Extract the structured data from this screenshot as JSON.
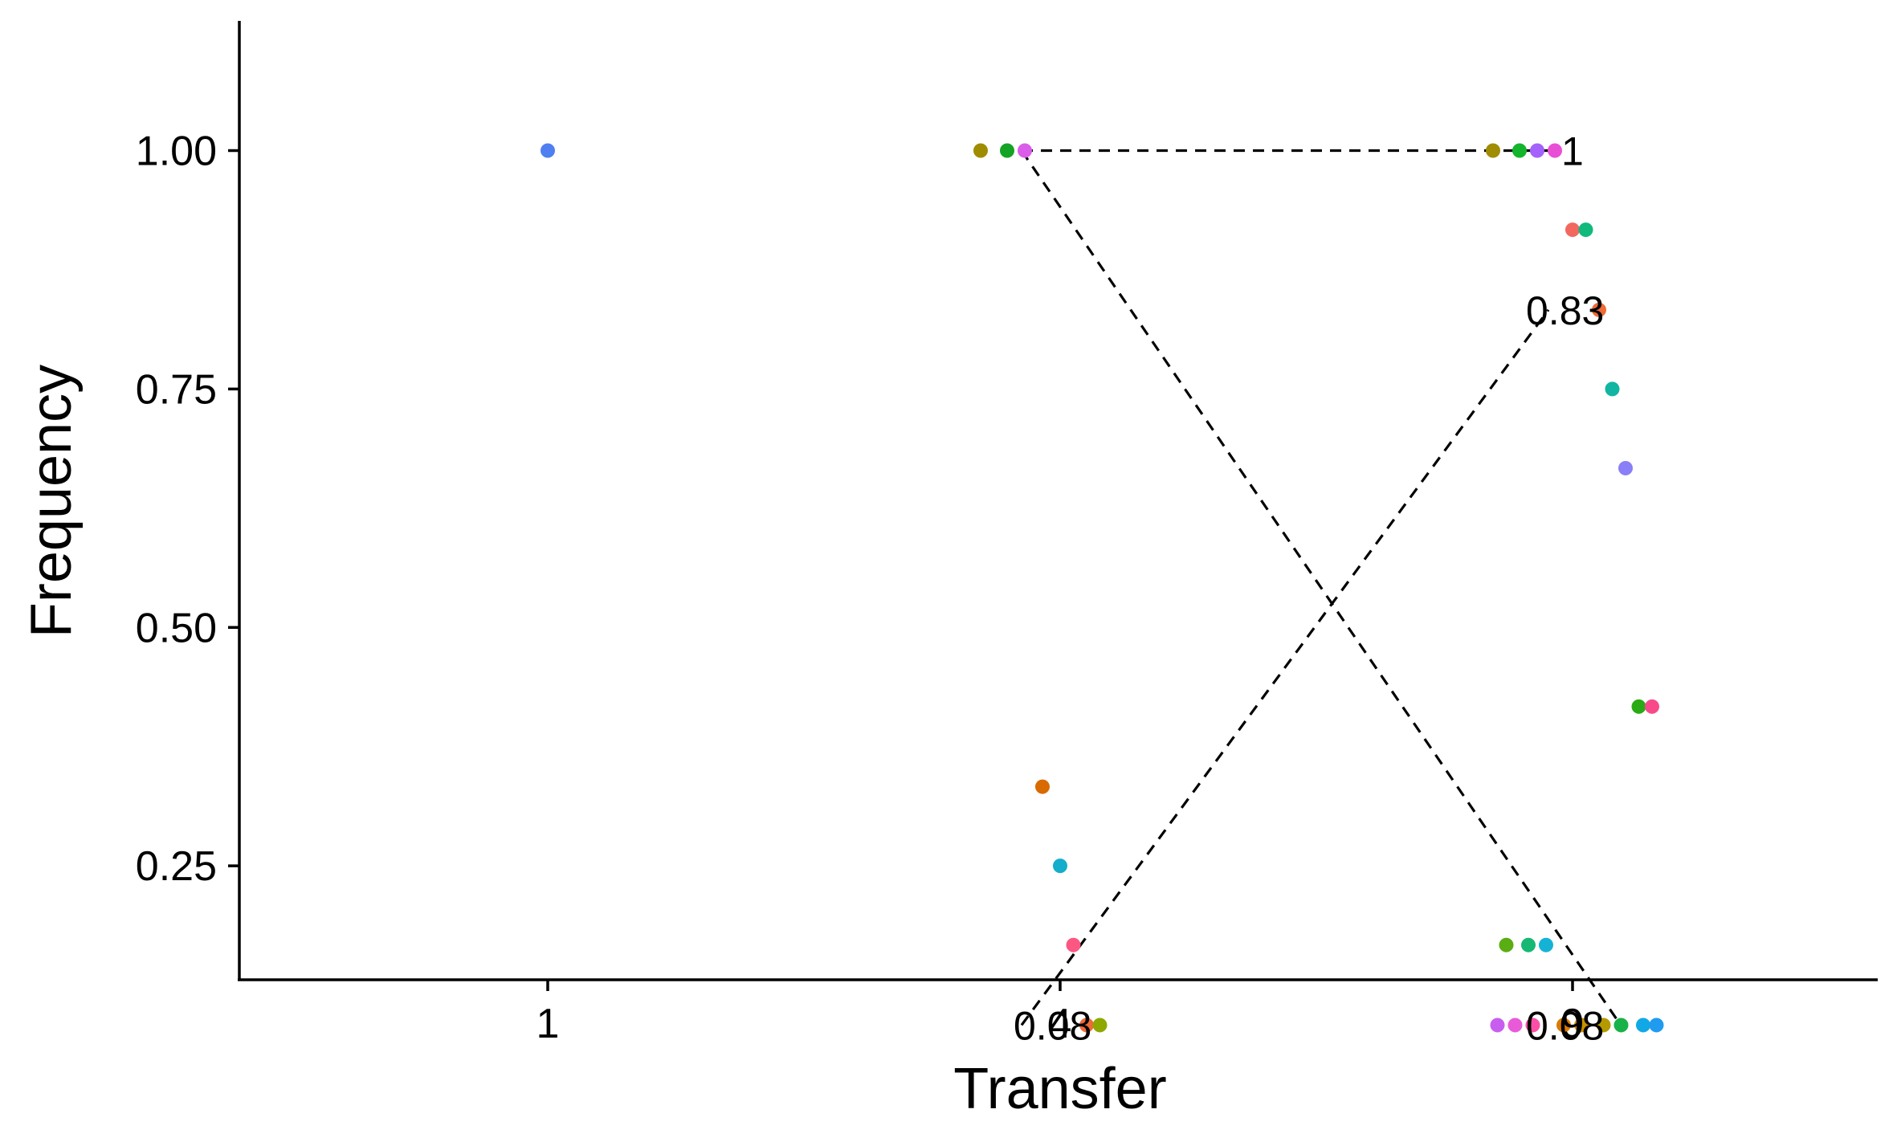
{
  "chart_data": {
    "type": "scatter",
    "title": "",
    "xlabel": "Transfer",
    "ylabel": "Frequency",
    "x_categories": [
      "1",
      "4",
      "9"
    ],
    "y_ticks": [
      "0.25",
      "0.50",
      "0.75",
      "1.00"
    ],
    "ylim": [
      0.04,
      1.04
    ],
    "grid": false,
    "legend": "none",
    "points": [
      {
        "x": "1",
        "y": 1.0,
        "color": "#4f7ff0"
      },
      {
        "x": "4",
        "y": 1.0,
        "color": "#a08c00"
      },
      {
        "x": "4",
        "y": 1.0,
        "color": "#13a325"
      },
      {
        "x": "4",
        "y": 1.0,
        "color": "#d95de8"
      },
      {
        "x": "4",
        "y": 0.333,
        "color": "#d86a00"
      },
      {
        "x": "4",
        "y": 0.25,
        "color": "#14adcc"
      },
      {
        "x": "4",
        "y": 0.167,
        "color": "#fb5782"
      },
      {
        "x": "4",
        "y": 0.083,
        "color": "#ee6a36"
      },
      {
        "x": "4",
        "y": 0.083,
        "color": "#8da800"
      },
      {
        "x": "9",
        "y": 1.0,
        "color": "#a08c00"
      },
      {
        "x": "9",
        "y": 1.0,
        "color": "#13b52c"
      },
      {
        "x": "9",
        "y": 1.0,
        "color": "#a461fb"
      },
      {
        "x": "9",
        "y": 1.0,
        "color": "#e84fd6"
      },
      {
        "x": "9",
        "y": 0.917,
        "color": "#f2685e"
      },
      {
        "x": "9",
        "y": 0.917,
        "color": "#11b97d"
      },
      {
        "x": "9",
        "y": 0.833,
        "color": "#ee6a36"
      },
      {
        "x": "9",
        "y": 0.75,
        "color": "#12b5a2"
      },
      {
        "x": "9",
        "y": 0.667,
        "color": "#8a7ff6"
      },
      {
        "x": "9",
        "y": 0.417,
        "color": "#2aaa14"
      },
      {
        "x": "9",
        "y": 0.417,
        "color": "#f84a8a"
      },
      {
        "x": "9",
        "y": 0.167,
        "color": "#5aad12"
      },
      {
        "x": "9",
        "y": 0.167,
        "color": "#16b873"
      },
      {
        "x": "9",
        "y": 0.167,
        "color": "#14b3d6"
      },
      {
        "x": "9",
        "y": 0.083,
        "color": "#d97b00"
      },
      {
        "x": "9",
        "y": 0.083,
        "color": "#c99000"
      },
      {
        "x": "9",
        "y": 0.083,
        "color": "#b49a00"
      },
      {
        "x": "9",
        "y": 0.083,
        "color": "#18b248"
      },
      {
        "x": "9",
        "y": 0.083,
        "color": "#11a8e6"
      },
      {
        "x": "9",
        "y": 0.083,
        "color": "#1f9bf0"
      },
      {
        "x": "9",
        "y": 0.083,
        "color": "#c85ef0"
      },
      {
        "x": "9",
        "y": 0.083,
        "color": "#e95ad8"
      },
      {
        "x": "9",
        "y": 0.083,
        "color": "#fa4fa4"
      }
    ],
    "trend_lines": [
      {
        "x_start": "4",
        "y_start": 1.0,
        "x_end": "9",
        "y_end": 1.0,
        "style": "dashed"
      },
      {
        "x_start": "4",
        "y_start": 1.0,
        "x_end": "9",
        "y_end": 0.083,
        "style": "dashed"
      },
      {
        "x_start": "4",
        "y_start": 0.083,
        "x_end": "9",
        "y_end": 0.833,
        "style": "dashed"
      }
    ],
    "annotations": [
      {
        "text": "1",
        "x": "9",
        "y": 1.0
      },
      {
        "text": "0.83",
        "x": "9",
        "y": 0.833
      },
      {
        "text": "0.08",
        "x": "4",
        "y": 0.083
      },
      {
        "text": "0.08",
        "x": "9",
        "y": 0.083
      }
    ]
  }
}
